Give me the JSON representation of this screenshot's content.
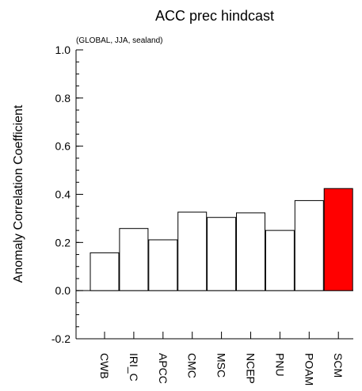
{
  "chart_data": {
    "type": "bar",
    "title": "ACC prec hindcast",
    "subtitle": "(GLOBAL, JJA, sealand)",
    "xlabel": "",
    "ylabel": "Anomaly Correlation Coefficient",
    "ylim": [
      -0.2,
      1.0
    ],
    "yticks": [
      "-0.2",
      "0.0",
      "0.2",
      "0.4",
      "0.6",
      "0.8",
      "1.0"
    ],
    "categories": [
      "CWB",
      "IRI_C",
      "APCC",
      "CMC",
      "MSC",
      "NCEP",
      "PNU",
      "POAM",
      "SCM"
    ],
    "values": [
      0.157,
      0.258,
      0.211,
      0.326,
      0.304,
      0.323,
      0.25,
      0.374,
      0.424
    ],
    "colors": [
      "#ffffff",
      "#ffffff",
      "#ffffff",
      "#ffffff",
      "#ffffff",
      "#ffffff",
      "#ffffff",
      "#ffffff",
      "#ff0000"
    ],
    "reference_line": 0.0,
    "grid": false,
    "legend": "none"
  }
}
